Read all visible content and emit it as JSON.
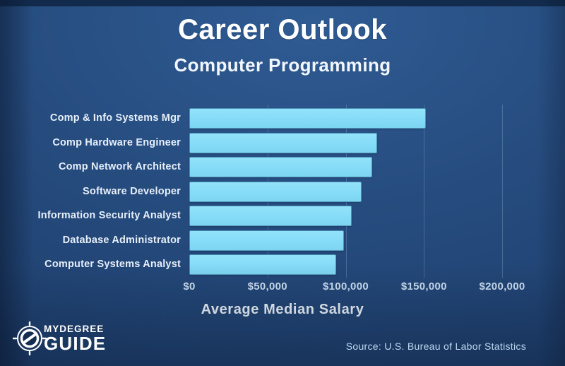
{
  "header": {
    "title": "Career Outlook",
    "subtitle": "Computer Programming"
  },
  "chart_data": {
    "type": "bar",
    "orientation": "horizontal",
    "title": "Career Outlook",
    "subtitle": "Computer Programming",
    "categories": [
      "Comp & Info Systems Mgr",
      "Comp Hardware Engineer",
      "Comp Network Architect",
      "Software Developer",
      "Information Security Analyst",
      "Database Administrator",
      "Computer Systems Analyst"
    ],
    "values": [
      151000,
      120000,
      117000,
      110000,
      104000,
      99000,
      94000
    ],
    "xlabel": "Average Median Salary",
    "ylabel": "",
    "xlim": [
      0,
      225000
    ],
    "x_tick_values": [
      0,
      50000,
      100000,
      150000,
      200000
    ],
    "x_tick_labels": [
      "$0",
      "$50,000",
      "$100,000",
      "$150,000",
      "$200,000"
    ],
    "grid": "faint vertical gridlines at x ticks",
    "legend": "none",
    "bar_color": "#84dbf7"
  },
  "colors": {
    "background": "#254a7c",
    "top_strip": "#122b4d",
    "bar_fill": "#84dbf7",
    "title_text": "#ffffff",
    "label_text": "#e6effa",
    "tick_text": "#cde0f3",
    "source_text": "#bed8f0"
  },
  "footer": {
    "logo": {
      "icon": "compass-logo-icon",
      "line1": "MYDEGREE",
      "line2": "GUIDE"
    },
    "source": "Source: U.S. Bureau of Labor Statistics"
  }
}
